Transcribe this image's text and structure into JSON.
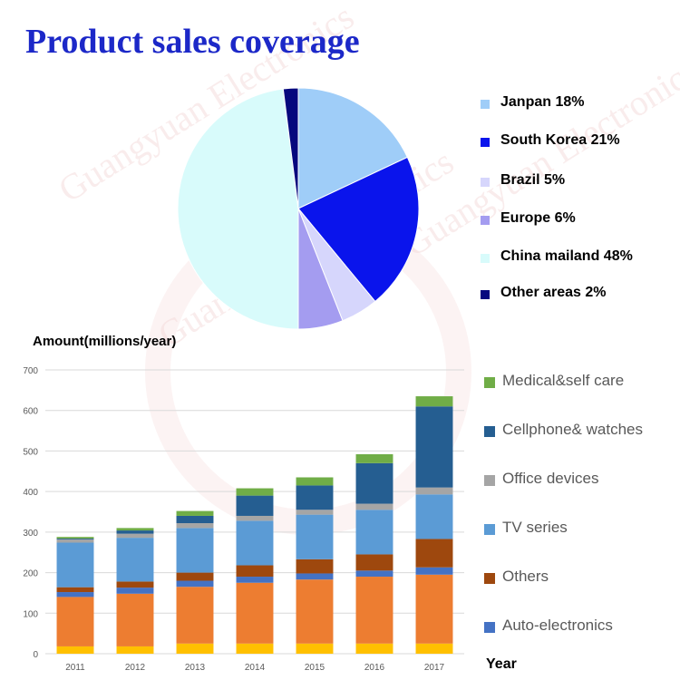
{
  "title": "Product sales coverage",
  "chart_data": [
    {
      "type": "pie",
      "title": "Product sales coverage",
      "slices": [
        {
          "label": "Janpan 18%",
          "value": 18,
          "color": "#9fcdf8"
        },
        {
          "label": "South Korea 21%",
          "value": 21,
          "color": "#0a14ec"
        },
        {
          "label": "Brazil 5%",
          "value": 5,
          "color": "#d6d6fc"
        },
        {
          "label": "Europe 6%",
          "value": 6,
          "color": "#a49cf0"
        },
        {
          "label": "China mailand 48%",
          "value": 48,
          "color": "#d8fbfb"
        },
        {
          "label": "Other areas 2%",
          "value": 2,
          "color": "#06087e"
        }
      ]
    },
    {
      "type": "bar",
      "stacked": true,
      "ylabel": "Amount(millions/year)",
      "xlabel": "Year",
      "ylim": [
        0,
        700
      ],
      "yticks": [
        "0",
        "100",
        "200",
        "300",
        "400",
        "500",
        "600",
        "700"
      ],
      "grid": true,
      "legend_position": "right",
      "categories": [
        "2011",
        "2012",
        "2013",
        "2014",
        "2015",
        "2016",
        "2017"
      ],
      "series": [
        {
          "color": "#ffc000",
          "values": [
            18,
            18,
            25,
            25,
            25,
            25,
            25
          ]
        },
        {
          "color": "#ed7d31",
          "values": [
            122,
            130,
            140,
            150,
            158,
            165,
            170
          ]
        },
        {
          "name": "Auto-electronics",
          "color": "#4472c4",
          "values": [
            12,
            15,
            15,
            15,
            15,
            15,
            18
          ]
        },
        {
          "name": "Others",
          "color": "#9e480e",
          "values": [
            12,
            15,
            20,
            28,
            35,
            40,
            70
          ]
        },
        {
          "name": "TV series",
          "color": "#5b9bd5",
          "values": [
            110,
            108,
            110,
            110,
            110,
            110,
            110
          ]
        },
        {
          "name": "Office devices",
          "color": "#a5a5a5",
          "values": [
            8,
            10,
            12,
            12,
            12,
            15,
            17
          ]
        },
        {
          "name": "Cellphone& watches",
          "color": "#255e91",
          "values": [
            2,
            8,
            18,
            50,
            60,
            100,
            200
          ]
        },
        {
          "name": "Medical&self care",
          "color": "#70ad47",
          "values": [
            4,
            6,
            12,
            18,
            20,
            22,
            25
          ]
        }
      ],
      "legend": [
        {
          "label": "Medical&self care",
          "color": "#70ad47"
        },
        {
          "label": "Cellphone& watches",
          "color": "#255e91"
        },
        {
          "label": "Office devices",
          "color": "#a5a5a5"
        },
        {
          "label": "TV series",
          "color": "#5b9bd5"
        },
        {
          "label": "Others",
          "color": "#9e480e"
        },
        {
          "label": "Auto-electronics",
          "color": "#4472c4"
        }
      ]
    }
  ]
}
